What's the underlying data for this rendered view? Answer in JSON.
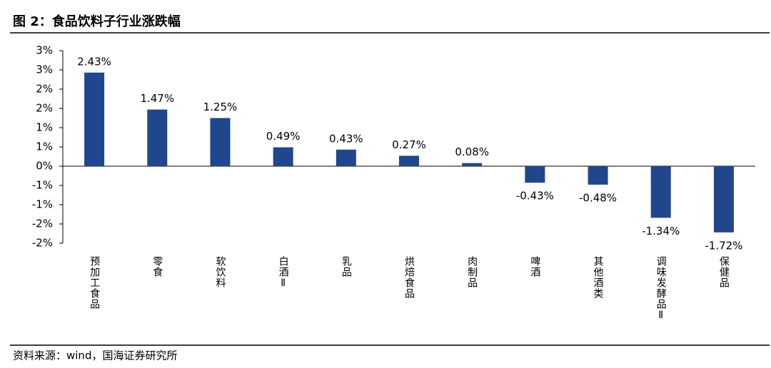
{
  "chart_data": {
    "type": "bar",
    "title": "图 2：食品饮料子行业涨跌幅",
    "source": "资料来源：wind，国海证券研究所",
    "categories": [
      "预加工食品",
      "零食",
      "软饮料",
      "白酒Ⅱ",
      "乳品",
      "烘焙食品",
      "肉制品",
      "啤酒",
      "其他酒类",
      "调味发酵品Ⅱ",
      "保健品"
    ],
    "values": [
      2.43,
      1.47,
      1.25,
      0.49,
      0.43,
      0.27,
      0.08,
      -0.43,
      -0.48,
      -1.34,
      -1.72
    ],
    "value_labels": [
      "2.43%",
      "1.47%",
      "1.25%",
      "0.49%",
      "0.43%",
      "0.27%",
      "0.08%",
      "-0.43%",
      "-0.48%",
      "-1.34%",
      "-1.72%"
    ],
    "color": "#21468b",
    "ylim": [
      -2,
      3
    ],
    "yticks": [
      {
        "value": 3,
        "label": "3%"
      },
      {
        "value": 2.5,
        "label": "3%"
      },
      {
        "value": 2,
        "label": "2%"
      },
      {
        "value": 1.5,
        "label": "2%"
      },
      {
        "value": 1,
        "label": "1%"
      },
      {
        "value": 0.5,
        "label": "1%"
      },
      {
        "value": 0,
        "label": "0%"
      },
      {
        "value": -0.5,
        "label": "-1%"
      },
      {
        "value": -1,
        "label": "-1%"
      },
      {
        "value": -1.5,
        "label": "-2%"
      },
      {
        "value": -2,
        "label": "-2%"
      }
    ]
  }
}
